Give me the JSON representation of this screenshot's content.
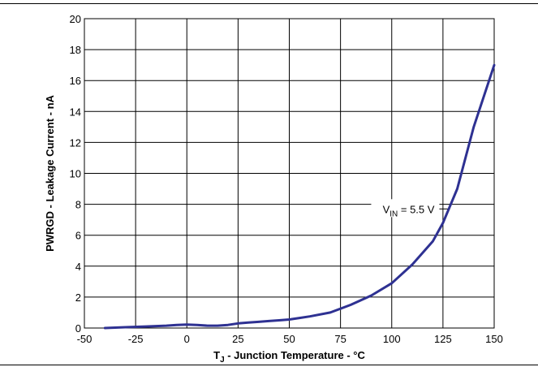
{
  "chart_data": {
    "type": "line",
    "xlabel_main": "T",
    "xlabel_sub": "J",
    "xlabel_rest": " - Junction Temperature - °C",
    "ylabel": "PWRGD - Leakage Current - nA",
    "xlim": [
      -50,
      150
    ],
    "ylim": [
      0,
      20
    ],
    "xticks": [
      -50,
      -25,
      0,
      25,
      50,
      75,
      100,
      125,
      150
    ],
    "yticks": [
      0,
      2,
      4,
      6,
      8,
      10,
      12,
      14,
      16,
      18,
      20
    ],
    "grid": true,
    "line_color": "#2e3192",
    "annotation": {
      "main": "V",
      "sub": "IN",
      "rest": " = 5.5 V",
      "anchor_x": 128,
      "anchor_y": 7.7
    },
    "series": [
      {
        "x": [
          -40,
          -30,
          -20,
          -10,
          -5,
          0,
          5,
          10,
          15,
          20,
          25,
          30,
          35,
          40,
          45,
          50,
          55,
          60,
          70,
          80,
          90,
          100,
          110,
          120,
          125,
          132,
          140,
          150
        ],
        "y": [
          0.0,
          0.05,
          0.1,
          0.15,
          0.2,
          0.22,
          0.2,
          0.15,
          0.15,
          0.2,
          0.3,
          0.35,
          0.4,
          0.45,
          0.5,
          0.55,
          0.65,
          0.75,
          1.0,
          1.5,
          2.1,
          2.9,
          4.1,
          5.6,
          6.8,
          9.0,
          13.0,
          17.0
        ]
      }
    ]
  }
}
